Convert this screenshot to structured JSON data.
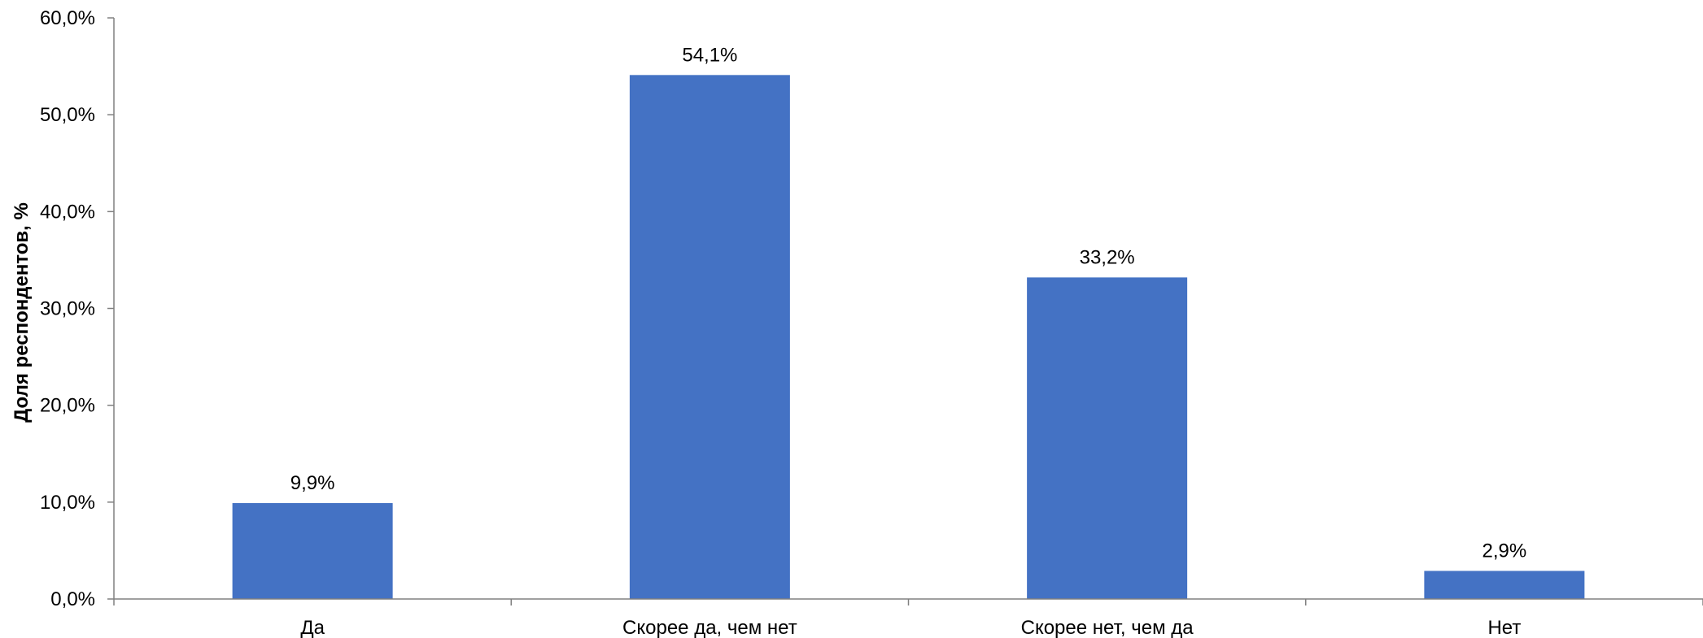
{
  "chart_data": {
    "type": "bar",
    "categories": [
      "Да",
      "Скорее да, чем нет",
      "Скорее нет, чем да",
      "Нет"
    ],
    "values": [
      9.9,
      54.1,
      33.2,
      2.9
    ],
    "data_labels": [
      "9,9%",
      "54,1%",
      "33,2%",
      "2,9%"
    ],
    "ylabel": "Доля респондентов, %",
    "xlabel": "",
    "ylim": [
      0,
      60
    ],
    "yticks": [
      0,
      10,
      20,
      30,
      40,
      50,
      60
    ],
    "ytick_labels": [
      "0,0%",
      "10,0%",
      "20,0%",
      "30,0%",
      "40,0%",
      "50,0%",
      "60,0%"
    ],
    "bar_color": "#4472C4",
    "grid": false,
    "legend": "none"
  }
}
